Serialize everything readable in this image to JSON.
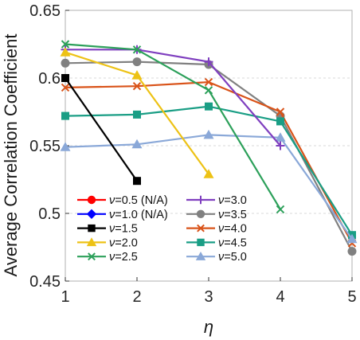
{
  "chart_data": {
    "type": "line",
    "xlabel": "η",
    "ylabel": "Average Correlation Coefficient",
    "xlim": [
      1,
      5
    ],
    "ylim": [
      0.45,
      0.65
    ],
    "xticks": [
      1,
      2,
      3,
      4,
      5
    ],
    "yticks": [
      0.45,
      0.5,
      0.55,
      0.6,
      0.65
    ],
    "xtick_labels": [
      "1",
      "2",
      "3",
      "4",
      "5"
    ],
    "ytick_labels": [
      "0.45",
      "0.5",
      "0.55",
      "0.6",
      "0.65"
    ],
    "grid": "horizontal dashed",
    "legend_position": "lower-left, two columns",
    "series": [
      {
        "name": "ν=0.5 (N/A)",
        "color": "#ff0000",
        "marker": "circle",
        "x": [],
        "y": []
      },
      {
        "name": "ν=1.0 (N/A)",
        "color": "#0000ff",
        "marker": "diamond",
        "x": [],
        "y": []
      },
      {
        "name": "ν=1.5",
        "color": "#000000",
        "marker": "square",
        "x": [
          1,
          2
        ],
        "y": [
          0.6,
          0.524
        ]
      },
      {
        "name": "ν=2.0",
        "color": "#edc215",
        "marker": "triangle",
        "x": [
          1,
          2,
          3
        ],
        "y": [
          0.619,
          0.602,
          0.529
        ]
      },
      {
        "name": "ν=2.5",
        "color": "#2ca05a",
        "marker": "x",
        "x": [
          1,
          2,
          3,
          4
        ],
        "y": [
          0.625,
          0.621,
          0.591,
          0.503
        ]
      },
      {
        "name": "ν=3.0",
        "color": "#7f3fbf",
        "marker": "plus",
        "x": [
          1,
          2,
          3,
          4
        ],
        "y": [
          0.621,
          0.621,
          0.612,
          0.55
        ]
      },
      {
        "name": "ν=3.5",
        "color": "#808080",
        "marker": "circle",
        "x": [
          1,
          2,
          3,
          4,
          5
        ],
        "y": [
          0.611,
          0.612,
          0.61,
          0.572,
          0.472
        ]
      },
      {
        "name": "ν=4.0",
        "color": "#d95319",
        "marker": "x",
        "x": [
          1,
          2,
          3,
          4,
          5
        ],
        "y": [
          0.593,
          0.594,
          0.597,
          0.575,
          0.478
        ]
      },
      {
        "name": "ν=4.5",
        "color": "#1a9e85",
        "marker": "square",
        "x": [
          1,
          2,
          3,
          4,
          5
        ],
        "y": [
          0.572,
          0.573,
          0.579,
          0.568,
          0.484
        ]
      },
      {
        "name": "ν=5.0",
        "color": "#8aa8d8",
        "marker": "triangle",
        "x": [
          1,
          2,
          3,
          4,
          5
        ],
        "y": [
          0.549,
          0.551,
          0.558,
          0.556,
          0.481
        ]
      }
    ]
  }
}
